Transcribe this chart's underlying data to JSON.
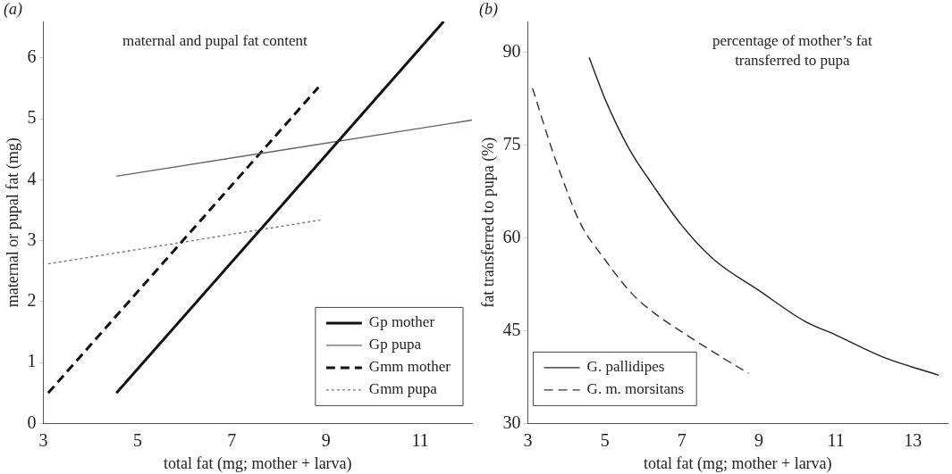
{
  "chart_data": [
    {
      "type": "line",
      "title": "maternal and pupal fat content",
      "xlabel": "total fat (mg; mother + larva)",
      "ylabel": "maternal or pupal fat (mg)",
      "annotations": [
        "(a)"
      ],
      "xlim": [
        3,
        12.1
      ],
      "ylim": [
        0,
        6.6
      ],
      "xticks": [
        3,
        5,
        7,
        9,
        11
      ],
      "yticks": [
        0,
        1,
        2,
        3,
        4,
        5,
        6
      ],
      "grid": false,
      "legend": "bottom right",
      "marker": "none",
      "series": [
        {
          "name": "Gp mother",
          "color": "#111111",
          "line_style": "solid",
          "x": [
            4.55,
            11.5
          ],
          "values": [
            0.5,
            6.6
          ]
        },
        {
          "name": "Gp pupa",
          "color": "#666666",
          "line_style": "solid",
          "x": [
            4.55,
            12.1
          ],
          "values": [
            4.06,
            4.98
          ]
        },
        {
          "name": "Gmm mother",
          "color": "#111111",
          "line_style": "dashed",
          "x": [
            3.1,
            8.84
          ],
          "values": [
            0.5,
            5.52
          ]
        },
        {
          "name": "Gmm pupa",
          "color": "#777777",
          "line_style": "dotted",
          "x": [
            3.1,
            8.88
          ],
          "values": [
            2.62,
            3.34
          ]
        }
      ]
    },
    {
      "type": "line",
      "title": "percentage of mother’s fat transferred to pupa",
      "xlabel": "total fat (mg; mother + larva)",
      "ylabel": "fat transferred to pupa (%)",
      "annotations": [
        "(b)"
      ],
      "xlim": [
        3,
        13.9
      ],
      "ylim": [
        30,
        95
      ],
      "xticks": [
        3,
        5,
        7,
        9,
        11,
        13
      ],
      "yticks": [
        30,
        45,
        60,
        75,
        90
      ],
      "grid": false,
      "legend": "bottom left",
      "marker": "none",
      "series": [
        {
          "name": "G. pallidipes",
          "color": "#222222",
          "line_style": "solid",
          "x": [
            4.59,
            5,
            5.62,
            6.25,
            7,
            7.83,
            9,
            10.2,
            11,
            12.2,
            13.67
          ],
          "values": [
            89.2,
            82.5,
            74.5,
            68.5,
            62,
            56.5,
            51.5,
            46.5,
            44.3,
            40.8,
            37.8
          ]
        },
        {
          "name": "G. m. morsitans",
          "color": "#333333",
          "line_style": "dashed",
          "x": [
            3.12,
            3.56,
            3.87,
            4.35,
            5,
            5.7,
            6.25,
            7,
            7.83,
            8.73
          ],
          "values": [
            84.2,
            75.5,
            70,
            62.5,
            56.5,
            51,
            48,
            44.8,
            41.5,
            38.1
          ]
        }
      ]
    }
  ]
}
